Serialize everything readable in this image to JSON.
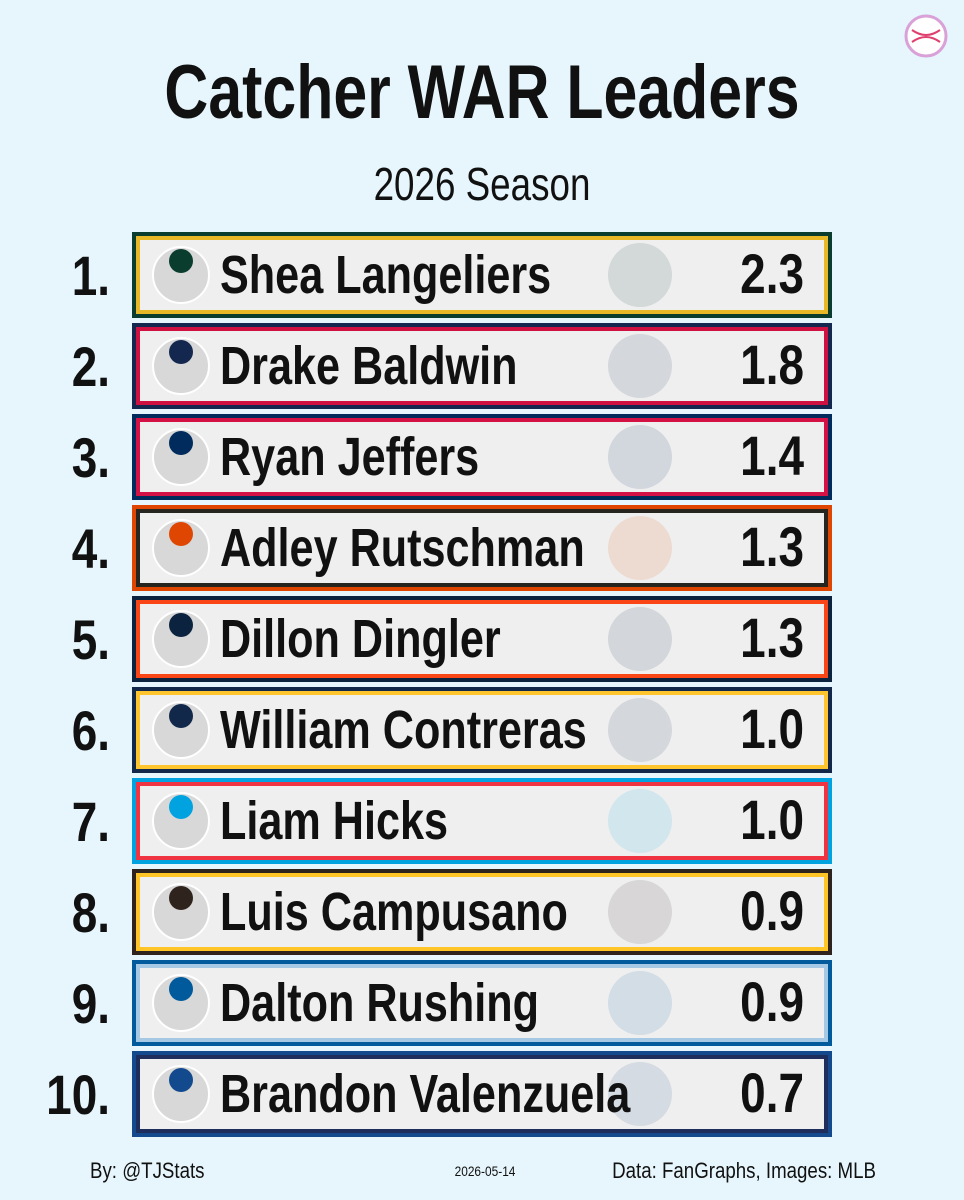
{
  "header": {
    "title": "Catcher WAR Leaders",
    "subtitle": "2026 Season"
  },
  "rows": [
    {
      "rank": "1.",
      "name": "Shea Langeliers",
      "war": "2.3",
      "colors": [
        "#0b3d2e",
        "#e9b826"
      ]
    },
    {
      "rank": "2.",
      "name": "Drake Baldwin",
      "war": "1.8",
      "colors": [
        "#13274f",
        "#ce1141"
      ]
    },
    {
      "rank": "3.",
      "name": "Ryan Jeffers",
      "war": "1.4",
      "colors": [
        "#002b5c",
        "#d31145"
      ]
    },
    {
      "rank": "4.",
      "name": "Adley Rutschman",
      "war": "1.3",
      "colors": [
        "#df4601",
        "#27251f"
      ]
    },
    {
      "rank": "5.",
      "name": "Dillon Dingler",
      "war": "1.3",
      "colors": [
        "#0c2340",
        "#fa4616"
      ]
    },
    {
      "rank": "6.",
      "name": "William Contreras",
      "war": "1.0",
      "colors": [
        "#12284b",
        "#ffc52f"
      ]
    },
    {
      "rank": "7.",
      "name": "Liam Hicks",
      "war": "1.0",
      "colors": [
        "#00a3e0",
        "#ef3340"
      ]
    },
    {
      "rank": "8.",
      "name": "Luis Campusano",
      "war": "0.9",
      "colors": [
        "#2f241d",
        "#ffc425"
      ]
    },
    {
      "rank": "9.",
      "name": "Dalton Rushing",
      "war": "0.9",
      "colors": [
        "#005a9c",
        "#a5c8e4"
      ]
    },
    {
      "rank": "10.",
      "name": "Brandon Valenzuela",
      "war": "0.7",
      "colors": [
        "#134a8e",
        "#1d2d5c"
      ]
    }
  ],
  "footer": {
    "credit": "By: @TJStats",
    "date": "2026-05-14",
    "source": "Data: FanGraphs, Images: MLB"
  }
}
